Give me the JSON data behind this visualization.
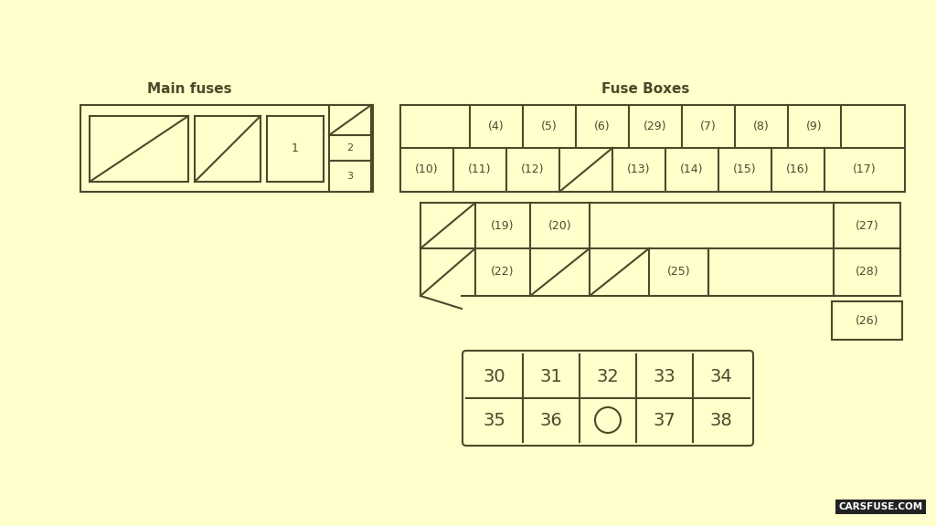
{
  "bg_color": "#FFFFCC",
  "line_color": "#4a4a2a",
  "title_main_fuses": "Main fuses",
  "title_fuse_boxes": "Fuse Boxes",
  "watermark": "CARSFUSE.COM",
  "fig_width": 10.24,
  "fig_height": 5.76
}
